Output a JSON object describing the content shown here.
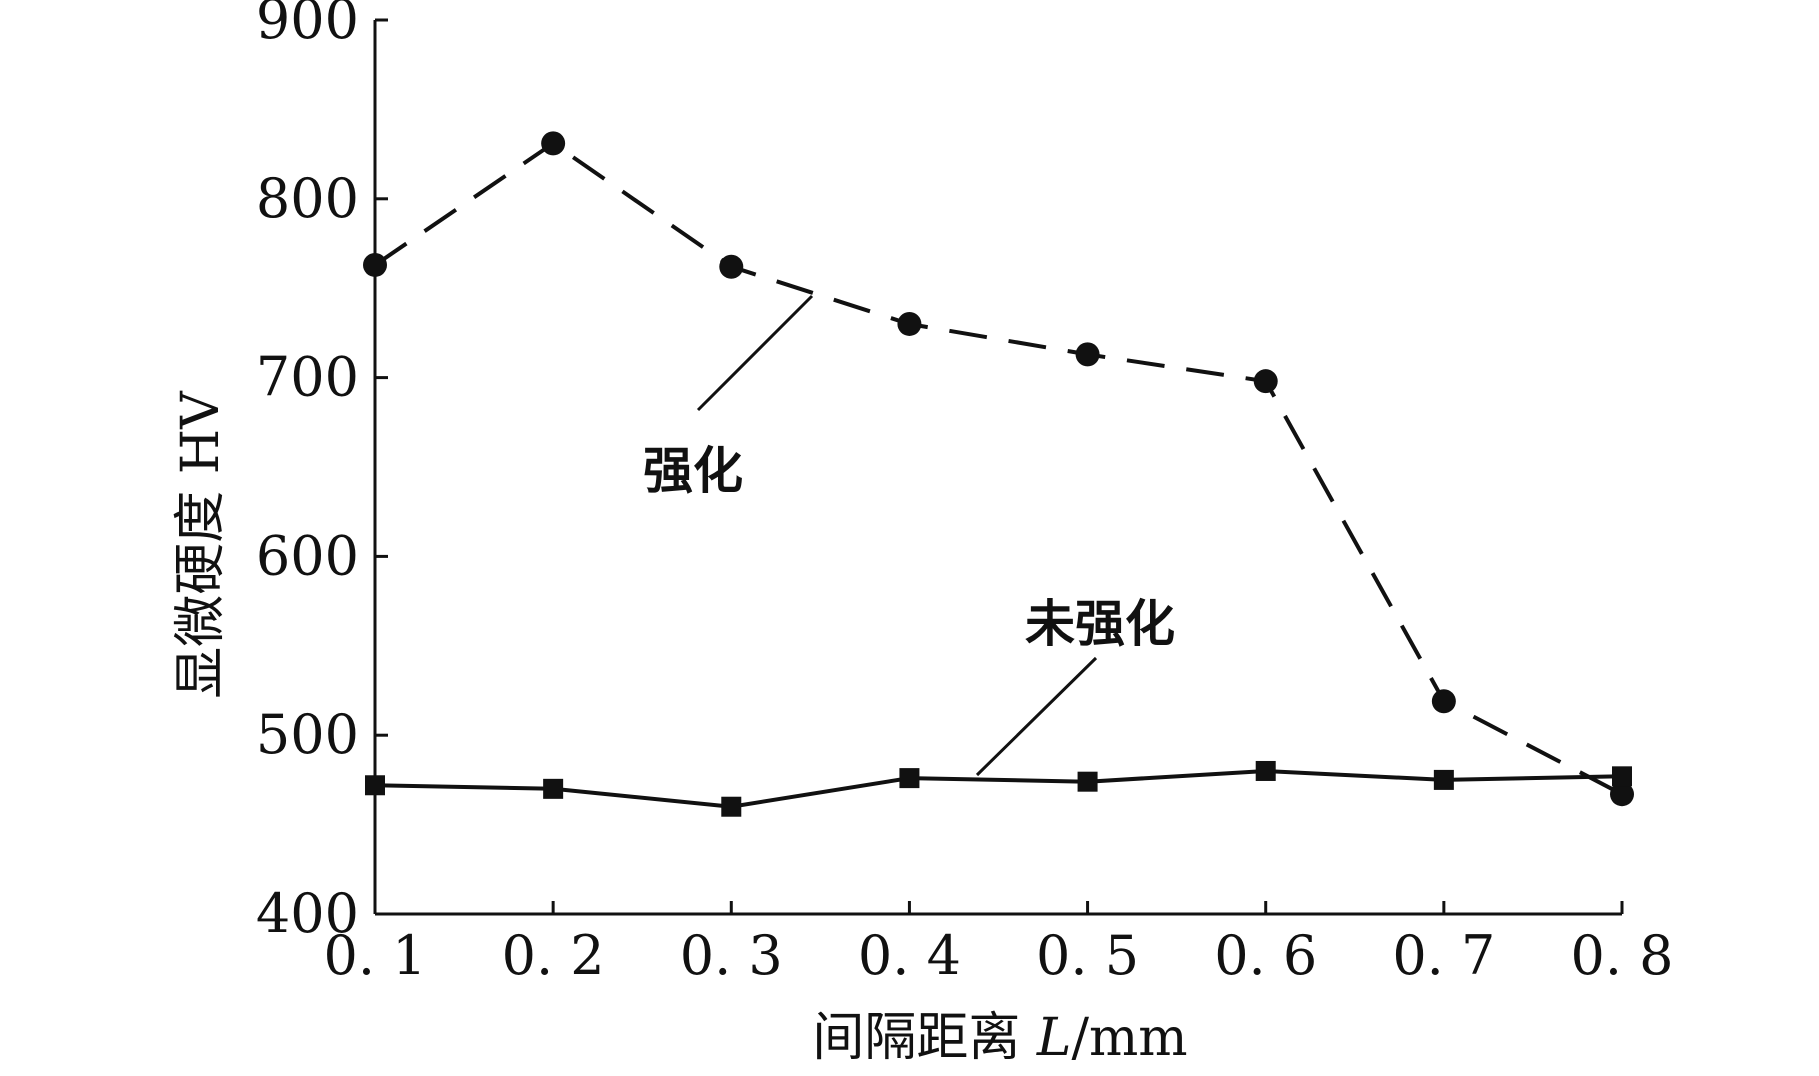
{
  "chart_data": {
    "type": "line",
    "xlabel_main": "间隔距离 ",
    "xlabel_var": "L",
    "xlabel_unit": "/mm",
    "ylabel": "显微硬度 HV",
    "x": [
      0.1,
      0.2,
      0.3,
      0.4,
      0.5,
      0.6,
      0.7,
      0.8
    ],
    "x_tick_labels": [
      "0. 1",
      "0. 2",
      "0. 3",
      "0. 4",
      "0. 5",
      "0. 6",
      "0. 7",
      "0. 8"
    ],
    "ylim": [
      400,
      900
    ],
    "y_ticks": [
      400,
      500,
      600,
      700,
      800,
      900
    ],
    "grid": false,
    "series": [
      {
        "name": "强化",
        "marker": "circle",
        "line_style": "dashed",
        "values": [
          763,
          831,
          762,
          730,
          713,
          698,
          519,
          467
        ]
      },
      {
        "name": "未强化",
        "marker": "square",
        "line_style": "solid",
        "values": [
          472,
          470,
          460,
          476,
          474,
          480,
          475,
          477
        ]
      }
    ]
  }
}
